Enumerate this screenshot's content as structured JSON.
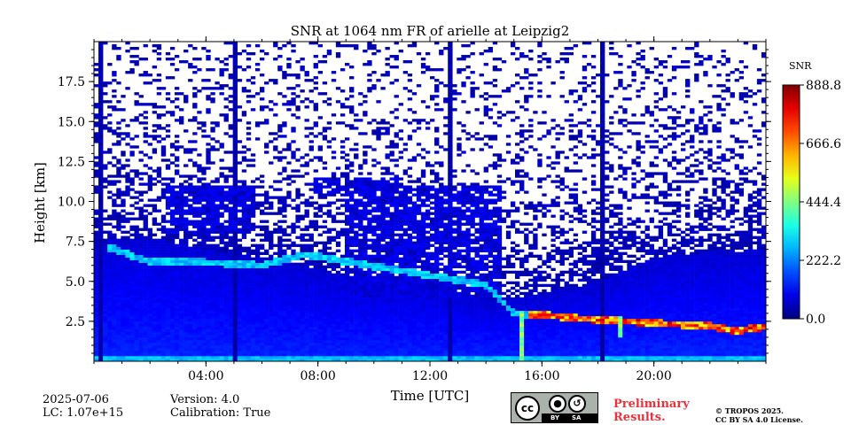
{
  "chart_data": {
    "type": "heatmap",
    "title": "SNR at 1064 nm FR of arielle at Leipzig2",
    "xlabel": "Time [UTC]",
    "ylabel": "Height [km]",
    "x_range_hours": [
      0,
      24
    ],
    "ylim_km": [
      0,
      20
    ],
    "x_ticks": [
      {
        "hour": 4,
        "label": "04:00"
      },
      {
        "hour": 8,
        "label": "08:00"
      },
      {
        "hour": 12,
        "label": "12:00"
      },
      {
        "hour": 16,
        "label": "16:00"
      },
      {
        "hour": 20,
        "label": "20:00"
      }
    ],
    "y_ticks": [
      {
        "value": 2.5,
        "label": "2.5"
      },
      {
        "value": 5.0,
        "label": "5.0"
      },
      {
        "value": 7.5,
        "label": "7.5"
      },
      {
        "value": 10.0,
        "label": "10.0"
      },
      {
        "value": 12.5,
        "label": "12.5"
      },
      {
        "value": 15.0,
        "label": "15.0"
      },
      {
        "value": 17.5,
        "label": "17.5"
      }
    ],
    "colorbar": {
      "label": "SNR",
      "range": [
        0,
        888.8
      ],
      "ticks": [
        {
          "value": 0.0,
          "label": "0.0"
        },
        {
          "value": 222.2,
          "label": "222.2"
        },
        {
          "value": 444.4,
          "label": "444.4"
        },
        {
          "value": 666.6,
          "label": "666.6"
        },
        {
          "value": 888.8,
          "label": "888.8"
        }
      ],
      "colormap": "jet"
    },
    "vertical_streaks_hours": [
      0.2,
      5.0,
      12.7,
      18.2
    ],
    "boundary_layer_top_km": [
      [
        0,
        7.5
      ],
      [
        2,
        7.8
      ],
      [
        4,
        7.0
      ],
      [
        6,
        6.5
      ],
      [
        8,
        5.8
      ],
      [
        10,
        5.0
      ],
      [
        12,
        5.0
      ],
      [
        14,
        3.8
      ],
      [
        15,
        4.0
      ],
      [
        16,
        4.2
      ],
      [
        18,
        5.0
      ],
      [
        20,
        6.5
      ],
      [
        22,
        6.8
      ],
      [
        24,
        7.0
      ]
    ],
    "cloud_layers": [
      {
        "start_h": 2.6,
        "end_h": 5.8,
        "base_km": 8.0,
        "top_km": 11.0
      },
      {
        "start_h": 7.8,
        "end_h": 11.0,
        "base_km": 10.5,
        "top_km": 11.5
      },
      {
        "start_h": 9.0,
        "end_h": 14.5,
        "base_km": 4.0,
        "top_km": 11.0
      }
    ],
    "aerosol_layer_km": [
      [
        0,
        7.5
      ],
      [
        2,
        6.2
      ],
      [
        4,
        6.2
      ],
      [
        6,
        6.0
      ],
      [
        7.5,
        6.7
      ],
      [
        14,
        4.8
      ],
      [
        15,
        3.0
      ],
      [
        16,
        2.9
      ],
      [
        18,
        2.6
      ],
      [
        20,
        2.4
      ],
      [
        22,
        2.2
      ],
      [
        23,
        1.9
      ],
      [
        24,
        2.2
      ]
    ],
    "high_snr_plumes": [
      {
        "hour": 15.3,
        "from_km": 0,
        "to_km": 3.2
      },
      {
        "hour": 18.8,
        "from_km": 1.5,
        "to_km": 2.8
      }
    ]
  },
  "footer": {
    "date": "2025-07-06",
    "lc": "LC: 1.07e+15",
    "version": "Version: 4.0",
    "calibration": "Calibration: True",
    "preliminary_1": "Preliminary",
    "preliminary_2": "Results.",
    "copyright_1": "© TROPOS 2025.",
    "copyright_2": "CC BY SA 4.0 License.",
    "cc_symbol": "cc",
    "cc_by": "BY",
    "cc_sa": "SA",
    "cc_by_icon": "person-icon",
    "cc_sa_icon": "share-alike-icon"
  },
  "colors": {
    "background": "#ffffff",
    "license_badge": "#aab2ab",
    "preliminary_red": "#e8333b"
  }
}
